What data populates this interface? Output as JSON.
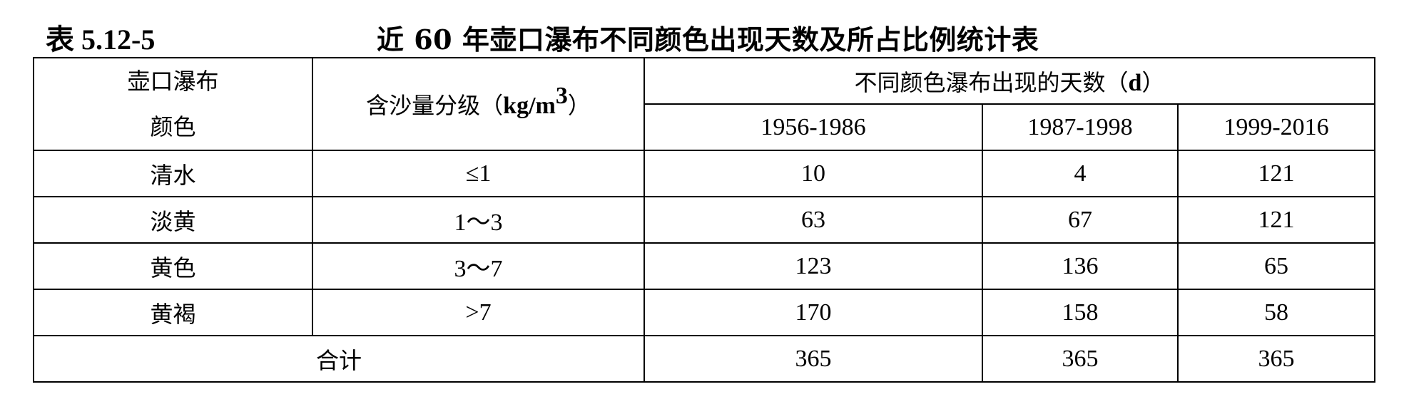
{
  "caption": {
    "number": "表 5.12-5",
    "title": "近 60 年壶口瀑布不同颜色出现天数及所占比例统计表"
  },
  "table": {
    "col_color_line1": "壶口瀑布",
    "col_color_line2": "颜色",
    "col_sediment_prefix": "含沙量分级（",
    "col_sediment_unit": "kg/m",
    "col_sediment_sup": "3",
    "col_sediment_suffix": "）",
    "col_days_group_prefix": "不同颜色瀑布出现的天数（",
    "col_days_group_unit": "d",
    "col_days_group_suffix": "）",
    "periods": [
      "1956-1986",
      "1987-1998",
      "1999-2016"
    ],
    "rows": [
      {
        "color": "清水",
        "grade": "≤1",
        "values": [
          "10",
          "4",
          "121"
        ]
      },
      {
        "color": "淡黄",
        "grade": "1～3",
        "values": [
          "63",
          "67",
          "121"
        ]
      },
      {
        "color": "黄色",
        "grade": "3～7",
        "values": [
          "123",
          "136",
          "65"
        ]
      },
      {
        "color": "黄褐",
        "grade": ">7",
        "values": [
          "170",
          "158",
          "58"
        ]
      }
    ],
    "total": {
      "label": "合计",
      "values": [
        "365",
        "365",
        "365"
      ]
    }
  }
}
